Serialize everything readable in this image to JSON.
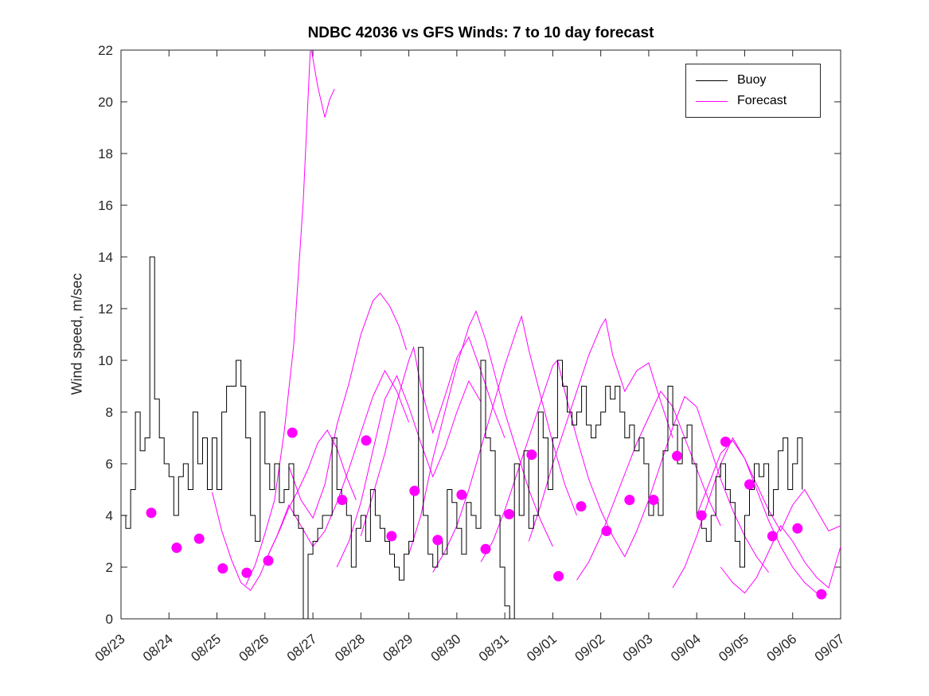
{
  "chart_data": {
    "type": "line",
    "title": "NDBC 42036 vs GFS Winds: 7 to 10 day forecast",
    "xlabel": "",
    "ylabel": "Wind speed, m/sec",
    "xlim": [
      0,
      15
    ],
    "ylim": [
      0,
      22
    ],
    "grid": false,
    "legend_position": "top-right",
    "legend": [
      {
        "label": "Buoy",
        "color": "#000000"
      },
      {
        "label": "Forecast",
        "color": "#FF00FF"
      }
    ],
    "colors": {
      "buoy": "#000000",
      "forecast": "#FF00FF",
      "axis": "#262626"
    },
    "yticks": [
      0,
      2,
      4,
      6,
      8,
      10,
      12,
      14,
      16,
      18,
      20,
      22
    ],
    "xticks": [
      0,
      1,
      2,
      3,
      4,
      5,
      6,
      7,
      8,
      9,
      10,
      11,
      12,
      13,
      14,
      15
    ],
    "xtick_labels": [
      "08/23",
      "08/24",
      "08/25",
      "08/26",
      "08/27",
      "08/28",
      "08/29",
      "08/30",
      "08/31",
      "09/01",
      "09/02",
      "09/03",
      "09/04",
      "09/05",
      "09/06",
      "09/07"
    ],
    "buoy": {
      "x0": 0.0,
      "dx": 0.1,
      "values": [
        4.0,
        3.5,
        5.0,
        8.0,
        6.5,
        7.0,
        14.0,
        8.5,
        7.0,
        6.0,
        5.5,
        4.0,
        5.5,
        6.0,
        5.0,
        8.0,
        6.0,
        7.0,
        5.0,
        7.0,
        5.0,
        8.0,
        9.0,
        9.0,
        10.0,
        9.0,
        7.0,
        4.0,
        3.0,
        8.0,
        6.0,
        5.0,
        6.0,
        4.5,
        5.0,
        6.0,
        4.0,
        3.5,
        0.0,
        2.5,
        3.0,
        3.5,
        4.0,
        4.0,
        7.0,
        5.0,
        4.5,
        4.0,
        2.0,
        3.5,
        4.0,
        3.0,
        5.0,
        4.0,
        3.5,
        3.0,
        2.5,
        2.0,
        1.5,
        2.5,
        3.0,
        5.0,
        10.5,
        4.0,
        2.5,
        2.0,
        3.0,
        2.5,
        5.0,
        4.5,
        3.5,
        2.5,
        4.5,
        4.0,
        3.5,
        10.0,
        7.0,
        6.5,
        4.0,
        2.0,
        0.5,
        0.0,
        6.0,
        4.0,
        6.5,
        3.5,
        4.0,
        8.0,
        7.0,
        5.0,
        7.0,
        10.0,
        9.0,
        8.0,
        7.5,
        8.0,
        9.0,
        7.5,
        7.0,
        7.5,
        8.0,
        9.0,
        8.5,
        9.0,
        8.0,
        7.0,
        7.5,
        6.5,
        7.0,
        6.0,
        4.0,
        4.5,
        4.0,
        6.5,
        9.0,
        7.5,
        6.0,
        7.0,
        7.5,
        6.0,
        4.0,
        3.5,
        3.0,
        4.0,
        5.5,
        6.0,
        5.0,
        4.5,
        3.0,
        2.0,
        4.0,
        5.0,
        6.0,
        5.5,
        6.0,
        4.0,
        5.0,
        6.5,
        7.0,
        5.0,
        6.0,
        7.0,
        5.0
      ]
    },
    "forecast_series": [
      {
        "x": [
          1.9,
          2.1,
          2.3,
          2.5,
          2.7,
          2.9,
          3.1,
          3.3,
          3.5,
          3.7,
          3.9,
          4.1,
          4.3,
          4.5,
          4.7,
          4.9
        ],
        "v": [
          4.9,
          3.4,
          2.3,
          1.4,
          1.1,
          1.7,
          2.6,
          3.4,
          4.3,
          5.0,
          5.8,
          6.8,
          7.3,
          6.6,
          5.5,
          4.6
        ]
      },
      {
        "x": [
          2.6,
          2.8,
          3.0,
          3.2,
          3.4,
          3.6,
          3.8,
          3.95,
          4.1,
          4.25,
          4.35,
          4.45
        ],
        "v": [
          1.3,
          2.1,
          3.3,
          4.6,
          7.2,
          10.6,
          16.2,
          22.2,
          20.6,
          19.4,
          20.1,
          20.5
        ]
      },
      {
        "x": [
          3.0,
          3.25,
          3.5,
          3.75,
          4.0,
          4.25,
          4.5,
          4.75,
          5.0,
          5.25,
          5.5,
          5.75,
          6.0
        ],
        "v": [
          2.2,
          3.2,
          4.4,
          3.6,
          2.8,
          3.4,
          4.5,
          5.8,
          7.2,
          8.6,
          9.6,
          8.8,
          7.6
        ]
      },
      {
        "x": [
          3.5,
          3.75,
          4.0,
          4.25,
          4.5,
          4.75,
          5.0,
          5.25,
          5.4,
          5.6,
          5.8,
          5.95
        ],
        "v": [
          5.9,
          4.6,
          3.9,
          5.2,
          7.5,
          9.1,
          11.0,
          12.3,
          12.6,
          12.1,
          11.3,
          10.4
        ]
      },
      {
        "x": [
          4.5,
          4.75,
          5.0,
          5.25,
          5.5,
          5.75,
          6.0,
          6.25,
          6.5,
          6.75,
          7.0,
          7.25,
          7.5
        ],
        "v": [
          2.0,
          3.0,
          4.5,
          6.5,
          8.5,
          9.4,
          8.2,
          6.8,
          5.5,
          6.6,
          8.0,
          9.2,
          8.4
        ]
      },
      {
        "x": [
          5.0,
          5.25,
          5.5,
          5.75,
          6.0,
          6.1,
          6.25,
          6.5,
          6.75,
          7.0,
          7.25,
          7.5,
          7.75,
          8.0
        ],
        "v": [
          3.2,
          4.8,
          6.4,
          8.4,
          10.0,
          10.5,
          9.0,
          7.2,
          8.6,
          10.1,
          10.9,
          9.6,
          8.2,
          7.0
        ]
      },
      {
        "x": [
          6.0,
          6.25,
          6.5,
          6.75,
          7.0,
          7.25,
          7.4,
          7.6,
          7.8,
          8.0,
          8.25,
          8.5,
          8.75,
          9.0
        ],
        "v": [
          2.5,
          4.0,
          6.2,
          8.0,
          9.8,
          11.3,
          11.9,
          10.8,
          9.4,
          8.0,
          6.5,
          5.0,
          3.8,
          2.8
        ]
      },
      {
        "x": [
          6.5,
          6.75,
          7.0,
          7.25,
          7.5,
          7.75,
          8.0,
          8.25,
          8.35,
          8.5,
          8.75,
          9.0,
          9.25,
          9.5
        ],
        "v": [
          1.8,
          2.6,
          3.6,
          5.0,
          6.6,
          8.2,
          9.8,
          11.2,
          11.7,
          10.4,
          8.6,
          6.8,
          5.2,
          4.0
        ]
      },
      {
        "x": [
          7.5,
          7.75,
          8.0,
          8.25,
          8.5,
          8.75,
          9.0,
          9.1,
          9.25,
          9.5,
          9.75,
          10.0,
          10.25,
          10.5
        ],
        "v": [
          2.2,
          3.0,
          4.2,
          5.6,
          7.0,
          8.4,
          9.8,
          10.0,
          8.8,
          7.0,
          5.4,
          4.2,
          3.2,
          2.4
        ]
      },
      {
        "x": [
          8.5,
          8.75,
          9.0,
          9.25,
          9.5,
          9.75,
          10.0,
          10.1,
          10.25,
          10.5,
          10.75,
          11.0,
          11.25,
          11.5
        ],
        "v": [
          3.0,
          4.4,
          6.0,
          7.4,
          8.8,
          10.2,
          11.3,
          11.6,
          10.2,
          8.8,
          9.6,
          9.9,
          8.4,
          7.0
        ]
      },
      {
        "x": [
          9.5,
          9.75,
          10.0,
          10.25,
          10.5,
          10.75,
          11.0,
          11.25,
          11.5,
          11.75,
          12.0,
          12.25,
          12.5
        ],
        "v": [
          1.5,
          2.2,
          3.2,
          4.4,
          5.6,
          6.8,
          7.8,
          8.8,
          8.2,
          7.0,
          5.8,
          4.6,
          3.6
        ]
      },
      {
        "x": [
          10.5,
          10.75,
          11.0,
          11.25,
          11.5,
          11.75,
          12.0,
          12.25,
          12.5,
          12.75,
          13.0,
          13.25,
          13.5
        ],
        "v": [
          2.4,
          3.4,
          4.6,
          6.0,
          7.4,
          8.6,
          8.2,
          6.8,
          5.4,
          4.2,
          3.2,
          2.4,
          1.8
        ]
      },
      {
        "x": [
          11.5,
          11.75,
          12.0,
          12.25,
          12.5,
          12.75,
          13.0,
          13.25,
          13.5,
          13.75,
          14.0,
          14.25,
          14.5
        ],
        "v": [
          1.2,
          2.0,
          3.2,
          4.6,
          6.0,
          7.0,
          6.2,
          5.0,
          3.8,
          2.8,
          2.0,
          1.4,
          1.0
        ]
      },
      {
        "x": [
          12.0,
          12.25,
          12.5,
          12.75,
          13.0,
          13.25,
          13.5,
          13.75,
          14.0,
          14.25,
          14.5,
          14.75,
          15.0
        ],
        "v": [
          4.0,
          5.2,
          6.4,
          6.9,
          6.2,
          5.2,
          4.2,
          3.4,
          4.4,
          5.0,
          4.2,
          3.4,
          3.6
        ]
      },
      {
        "x": [
          12.5,
          12.75,
          13.0,
          13.25,
          13.5,
          13.75,
          14.0,
          14.25,
          14.5,
          14.75,
          15.0
        ],
        "v": [
          2.0,
          1.4,
          1.0,
          1.6,
          2.6,
          3.6,
          3.0,
          2.2,
          1.6,
          1.2,
          2.8
        ]
      }
    ],
    "forecast_dots": [
      [
        0.63,
        4.1
      ],
      [
        1.16,
        2.75
      ],
      [
        1.63,
        3.1
      ],
      [
        2.12,
        1.95
      ],
      [
        2.62,
        1.78
      ],
      [
        3.07,
        2.25
      ],
      [
        3.57,
        7.2
      ],
      [
        4.61,
        4.6
      ],
      [
        5.11,
        6.9
      ],
      [
        5.64,
        3.2
      ],
      [
        6.12,
        4.95
      ],
      [
        6.6,
        3.05
      ],
      [
        7.1,
        4.8
      ],
      [
        7.6,
        2.7
      ],
      [
        8.09,
        4.05
      ],
      [
        8.56,
        6.35
      ],
      [
        9.12,
        1.65
      ],
      [
        9.59,
        4.35
      ],
      [
        10.12,
        3.4
      ],
      [
        10.6,
        4.6
      ],
      [
        11.1,
        4.6
      ],
      [
        11.59,
        6.3
      ],
      [
        12.1,
        4.0
      ],
      [
        12.6,
        6.85
      ],
      [
        13.1,
        5.2
      ],
      [
        13.58,
        3.2
      ],
      [
        14.1,
        3.5
      ],
      [
        14.6,
        0.95
      ]
    ]
  }
}
